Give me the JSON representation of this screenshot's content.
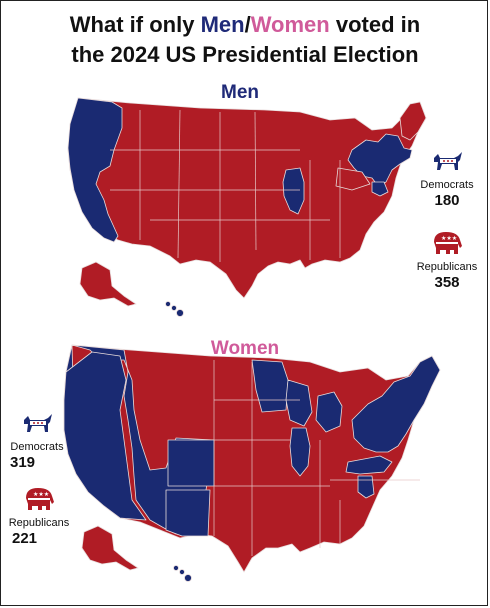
{
  "title": {
    "prefix": "What if only ",
    "men": "Men",
    "slash": "/",
    "women": "Women",
    "suffix_line1": " voted in",
    "line2": "the 2024 US Presidential Election"
  },
  "colors": {
    "democrat": "#1a2a72",
    "republican": "#b01c25",
    "men_accent": "#1f2a78",
    "women_accent": "#d05a9a"
  },
  "maps": [
    {
      "label": "Men",
      "democrats": {
        "name": "Democrats",
        "electoral_votes": "180",
        "icon": "donkey-icon"
      },
      "republicans": {
        "name": "Republicans",
        "electoral_votes": "358",
        "icon": "elephant-icon"
      }
    },
    {
      "label": "Women",
      "democrats": {
        "name": "Democrats",
        "electoral_votes": "319",
        "icon": "donkey-icon"
      },
      "republicans": {
        "name": "Republicans",
        "electoral_votes": "221",
        "icon": "elephant-icon"
      }
    }
  ]
}
